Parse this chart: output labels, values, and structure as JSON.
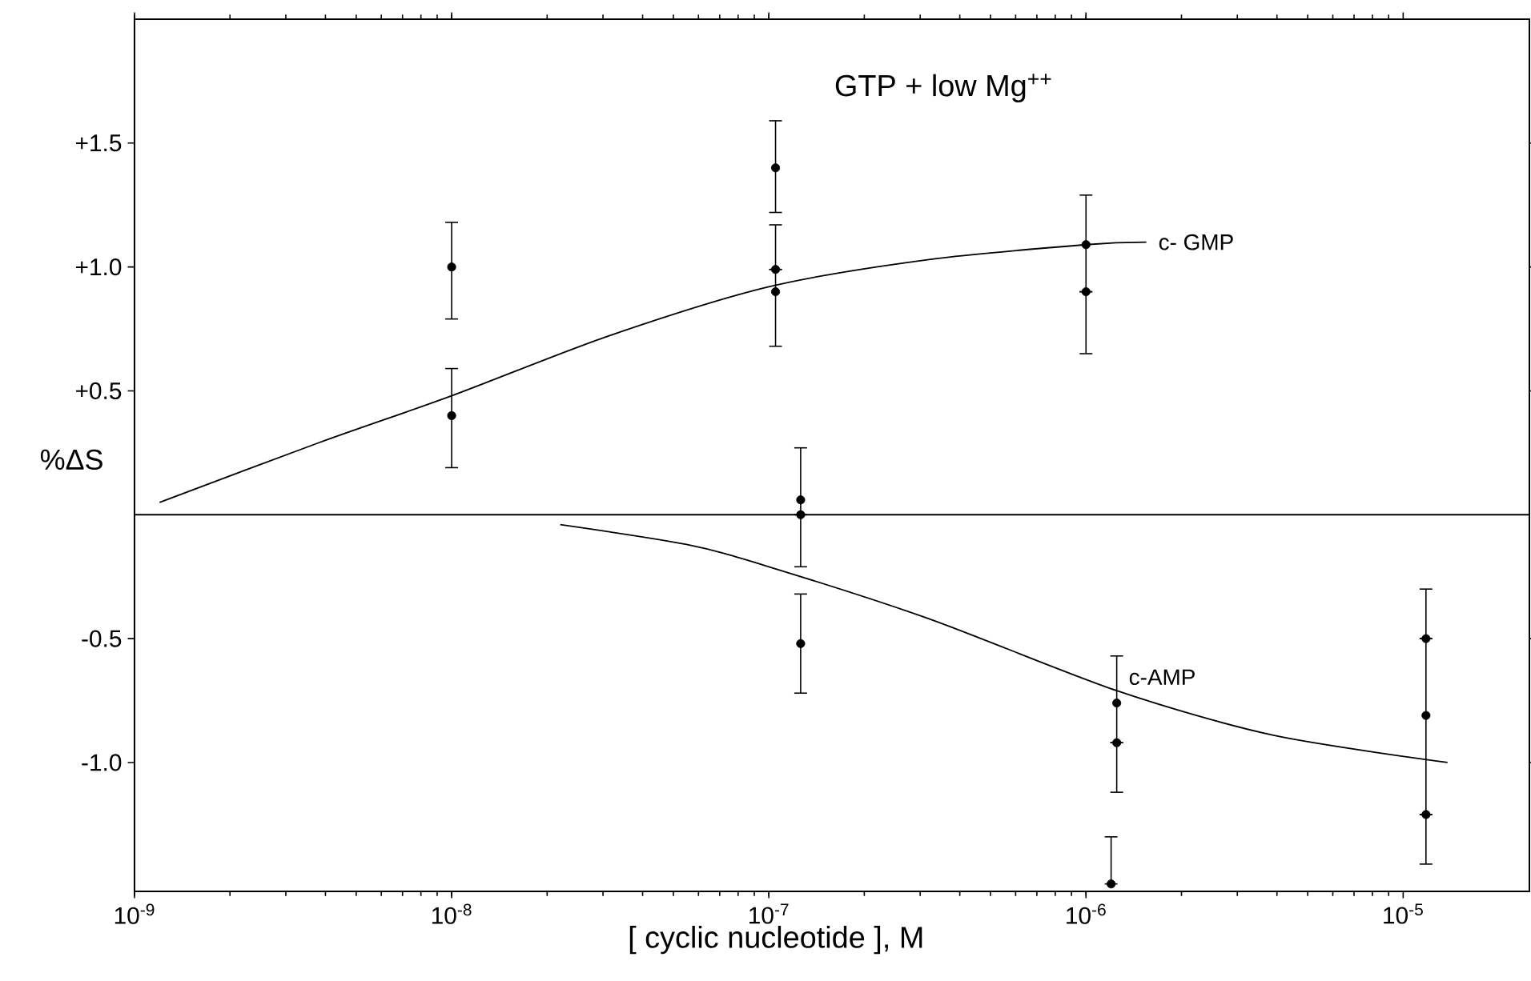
{
  "chart_data": {
    "type": "scatter",
    "title": "GTP + low Mg$^{++}$",
    "xlabel": "[ cyclic nucleotide ], M",
    "ylabel": "%ΔS",
    "log": "x",
    "xlim": [
      1e-09,
      2.5e-05
    ],
    "ylim": [
      -1.52,
      2.0
    ],
    "xticks": [
      {
        "value": 1e-09,
        "label": "10$^{-9}$"
      },
      {
        "value": 1e-08,
        "label": "10$^{-8}$"
      },
      {
        "value": 1e-07,
        "label": "10$^{-7}$"
      },
      {
        "value": 1e-06,
        "label": "10$^{-6}$"
      },
      {
        "value": 1e-05,
        "label": "10$^{-5}$"
      }
    ],
    "yticks": [
      {
        "value": 1.5,
        "label": "+1.5"
      },
      {
        "value": 1.0,
        "label": "+1.0"
      },
      {
        "value": 0.5,
        "label": "+0.5"
      },
      {
        "value": -0.5,
        "label": "-0.5"
      },
      {
        "value": -1.0,
        "label": "-1.0"
      }
    ],
    "ref_lines": [
      {
        "axis": "y",
        "value": 0
      }
    ],
    "series": [
      {
        "name": "c- GMP",
        "type": "line",
        "color": "#000000",
        "marker": "none",
        "x": [
          1.2e-09,
          3.8e-09,
          1e-08,
          3.1e-08,
          1e-07,
          3.2e-07,
          1e-06,
          1.55e-06
        ],
        "values": [
          0.05,
          0.29,
          0.48,
          0.72,
          0.92,
          1.03,
          1.09,
          1.1
        ]
      },
      {
        "name": "c-AMP",
        "type": "line",
        "color": "#000000",
        "marker": "none",
        "x": [
          2.2e-08,
          5.5e-08,
          1e-07,
          3.2e-07,
          1.25e-06,
          3.9e-06,
          1.38e-05
        ],
        "values": [
          -0.04,
          -0.12,
          -0.21,
          -0.42,
          -0.71,
          -0.89,
          -1.0
        ]
      },
      {
        "color": "#000000",
        "marker": "circle",
        "x": [
          1e-08,
          1e-08,
          1.05e-07,
          1e-06
        ],
        "values": [
          1.0,
          0.4,
          1.4,
          0.9
        ],
        "errors": [
          [
            0.79,
            1.18
          ],
          [
            0.19,
            0.59
          ],
          [
            1.22,
            1.59
          ],
          null
        ]
      },
      {
        "color": "#000000",
        "marker": "circle",
        "x": [
          1.05e-07,
          1.05e-07,
          1e-06
        ],
        "values": [
          0.99,
          0.9,
          1.09
        ],
        "errors": [
          null,
          [
            0.68,
            1.17
          ],
          [
            0.65,
            1.29
          ]
        ]
      },
      {
        "color": "#000000",
        "marker": "circle",
        "x": [
          1.26e-07,
          1.26e-07,
          1.26e-07,
          1.25e-06,
          1.25e-06,
          1.2e-06,
          1.18e-05,
          1.18e-05,
          1.18e-05
        ],
        "values": [
          0.06,
          0.0,
          -0.52,
          -0.76,
          -0.92,
          -1.49,
          -0.5,
          -0.81,
          -1.21
        ],
        "errors": [
          [
            -0.21,
            0.27
          ],
          null,
          [
            -0.72,
            -0.32
          ],
          [
            -1.12,
            -0.57
          ],
          null,
          [
            -1.49,
            -1.3
          ],
          null,
          [
            -1.41,
            -0.3
          ],
          null
        ]
      }
    ]
  }
}
